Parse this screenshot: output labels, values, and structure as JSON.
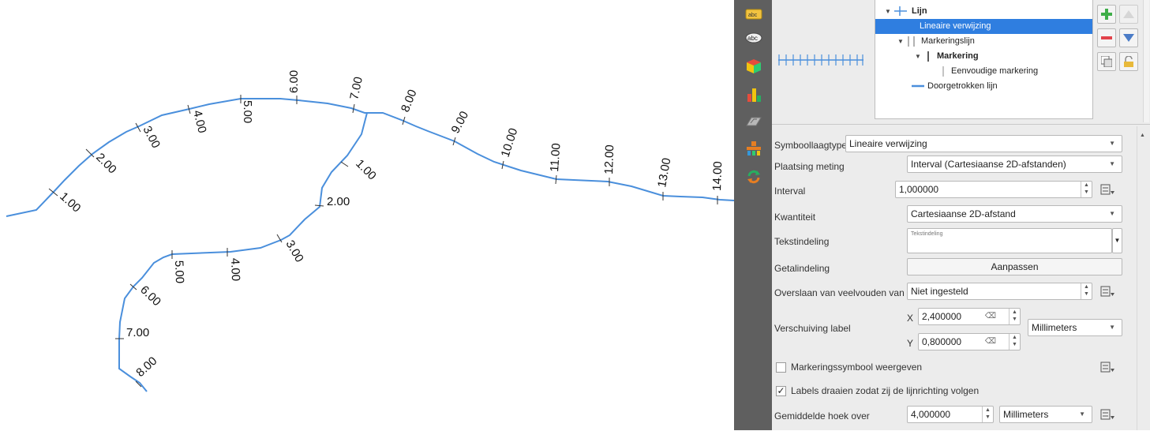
{
  "map": {
    "line_color": "#4a8fdc",
    "main_labels": [
      "1.00",
      "2.00",
      "3.00",
      "4.00",
      "5.00",
      "6.00",
      "7.00",
      "8.00",
      "9.00",
      "10.00",
      "11.00",
      "12.00",
      "13.00",
      "14.00"
    ],
    "branch_labels": [
      "1.00",
      "2.00",
      "3.00",
      "4.00",
      "5.00",
      "6.00",
      "7.00",
      "8.00"
    ]
  },
  "iconbar": {
    "icons": [
      "label-settings-icon",
      "text-label-icon",
      "3d-cube-icon",
      "diagram-icon",
      "mask-icon",
      "fields-icon",
      "actions-icon"
    ]
  },
  "layer_tree": {
    "rows": [
      {
        "label": "Lijn",
        "bold": true,
        "selected": false
      },
      {
        "label": "Lineaire verwijzing",
        "bold": false,
        "selected": true
      },
      {
        "label": "Markeringslijn",
        "bold": false,
        "selected": false
      },
      {
        "label": "Markering",
        "bold": true,
        "selected": false
      },
      {
        "label": "Eenvoudige markering",
        "bold": false,
        "selected": false
      },
      {
        "label": "Doorgetrokken lijn",
        "bold": false,
        "selected": false
      }
    ]
  },
  "tree_buttons": [
    "add-layer-icon",
    "remove-layer-icon",
    "duplicate-layer-icon",
    "lock-icon",
    "move-up-icon",
    "move-down-icon"
  ],
  "props": {
    "symbol_layer_type": {
      "label": "Symboollaagtype",
      "value": "Lineaire verwijzing"
    },
    "placement": {
      "label": "Plaatsing meting",
      "value": "Interval (Cartesiaanse 2D-afstanden)"
    },
    "interval": {
      "label": "Interval",
      "value": "1,000000"
    },
    "quantity": {
      "label": "Kwantiteit",
      "value": "Cartesiaanse 2D-afstand"
    },
    "text_format": {
      "label": "Tekstindeling",
      "preview": "Tekstindeling"
    },
    "number_format": {
      "label": "Getalindeling",
      "button": "Aanpassen"
    },
    "skip_multiples": {
      "label": "Overslaan van veelvouden van",
      "value": "Niet ingesteld"
    },
    "label_offset": {
      "label": "Verschuiving label",
      "x_label": "X",
      "x_value": "2,400000",
      "y_label": "Y",
      "y_value": "0,800000",
      "unit": "Millimeters"
    },
    "show_marker": {
      "label": "Markeringssymbool weergeven",
      "checked": false
    },
    "rotate_labels": {
      "label": "Labels draaien zodat zij de lijnrichting volgen",
      "checked": true
    },
    "average_angle": {
      "label": "Gemiddelde hoek over",
      "value": "4,000000",
      "unit": "Millimeters"
    }
  }
}
